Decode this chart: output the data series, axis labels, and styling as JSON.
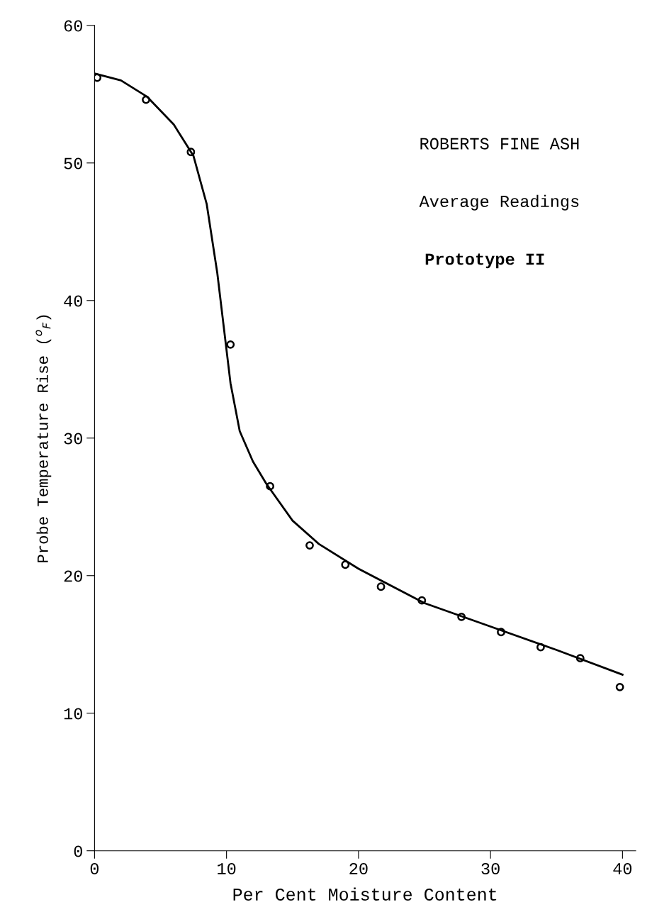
{
  "chart_data": {
    "type": "scatter",
    "xlabel": "Per Cent Moisture Content",
    "ylabel": "Probe Temperature Rise ($^{o}$$_{F}$)",
    "xlim": [
      0,
      41
    ],
    "ylim": [
      0,
      60
    ],
    "xticks": [
      0,
      10,
      20,
      30,
      40
    ],
    "yticks": [
      0,
      10,
      20,
      30,
      40,
      50,
      60
    ],
    "grid": false,
    "marker": "circle",
    "annotations": [
      "ROBERTS FINE ASH",
      "Average Readings",
      "Prototype II"
    ],
    "series": [
      {
        "color": "#000000",
        "x": [
          0.2,
          3.9,
          7.3,
          10.3,
          13.3,
          16.3,
          19.0,
          21.7,
          24.8,
          27.8,
          30.8,
          33.8,
          36.8,
          39.8
        ],
        "values": [
          56.2,
          54.6,
          50.8,
          36.8,
          26.5,
          22.2,
          20.8,
          19.2,
          18.2,
          17.0,
          15.9,
          14.8,
          14.0,
          11.9
        ]
      },
      {
        "type": "line",
        "color": "#000000",
        "marker": "none",
        "x": [
          0,
          2,
          4,
          6,
          7.5,
          8.5,
          9.3,
          9.8,
          10.3,
          11,
          12,
          13,
          15,
          17,
          20,
          25,
          30,
          35,
          40
        ],
        "values": [
          56.5,
          56.0,
          54.8,
          52.8,
          50.5,
          47.0,
          42.0,
          38.0,
          34.0,
          30.5,
          28.3,
          26.7,
          24.0,
          22.3,
          20.5,
          18.0,
          16.3,
          14.6,
          12.8
        ]
      }
    ]
  }
}
